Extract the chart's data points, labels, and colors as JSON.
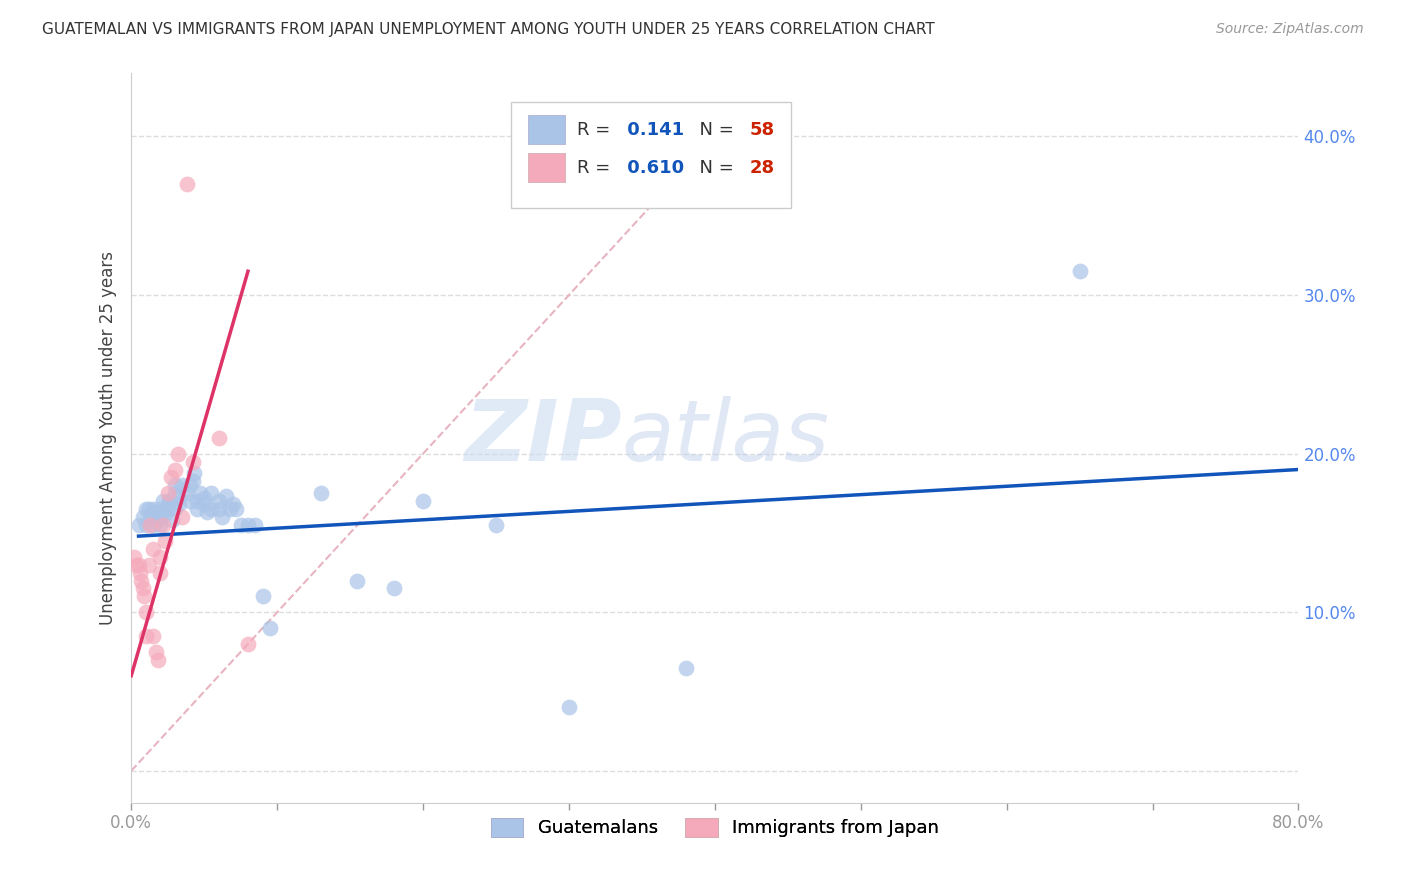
{
  "title": "GUATEMALAN VS IMMIGRANTS FROM JAPAN UNEMPLOYMENT AMONG YOUTH UNDER 25 YEARS CORRELATION CHART",
  "source": "Source: ZipAtlas.com",
  "ylabel": "Unemployment Among Youth under 25 years",
  "xlim": [
    0.0,
    0.8
  ],
  "ylim": [
    -0.02,
    0.44
  ],
  "xticks": [
    0.0,
    0.1,
    0.2,
    0.3,
    0.4,
    0.5,
    0.6,
    0.7,
    0.8
  ],
  "xticklabels": [
    "0.0%",
    "",
    "",
    "",
    "",
    "",
    "",
    "",
    "80.0%"
  ],
  "yticks": [
    0.0,
    0.1,
    0.2,
    0.3,
    0.4
  ],
  "yticklabels": [
    "",
    "10.0%",
    "20.0%",
    "30.0%",
    "40.0%"
  ],
  "guatemalans_color": "#aac4e8",
  "japan_color": "#f5aabb",
  "guatemalans_R": 0.141,
  "guatemalans_N": 58,
  "japan_R": 0.61,
  "japan_N": 28,
  "trend_blue_color": "#1155bb",
  "trend_pink_color": "#dd3366",
  "diag_color": "#e8b4c0",
  "diag_linestyle": "--",
  "watermark_zip": "ZIP",
  "watermark_atlas": "atlas",
  "legend_R_color": "#1155bb",
  "legend_N_color": "#cc2200",
  "guatemalans_x": [
    0.005,
    0.008,
    0.01,
    0.01,
    0.012,
    0.013,
    0.015,
    0.015,
    0.016,
    0.018,
    0.02,
    0.02,
    0.02,
    0.022,
    0.023,
    0.025,
    0.025,
    0.026,
    0.028,
    0.03,
    0.03,
    0.03,
    0.032,
    0.033,
    0.035,
    0.038,
    0.04,
    0.04,
    0.042,
    0.043,
    0.045,
    0.045,
    0.047,
    0.05,
    0.05,
    0.052,
    0.055,
    0.055,
    0.06,
    0.06,
    0.062,
    0.065,
    0.068,
    0.07,
    0.072,
    0.075,
    0.08,
    0.085,
    0.09,
    0.095,
    0.13,
    0.155,
    0.18,
    0.2,
    0.25,
    0.3,
    0.38,
    0.65
  ],
  "guatemalans_y": [
    0.155,
    0.16,
    0.165,
    0.155,
    0.165,
    0.16,
    0.165,
    0.155,
    0.163,
    0.158,
    0.155,
    0.165,
    0.16,
    0.17,
    0.162,
    0.165,
    0.168,
    0.17,
    0.158,
    0.165,
    0.175,
    0.18,
    0.172,
    0.168,
    0.18,
    0.175,
    0.18,
    0.17,
    0.183,
    0.188,
    0.17,
    0.165,
    0.175,
    0.168,
    0.172,
    0.163,
    0.165,
    0.175,
    0.165,
    0.17,
    0.16,
    0.173,
    0.165,
    0.168,
    0.165,
    0.155,
    0.155,
    0.155,
    0.11,
    0.09,
    0.175,
    0.12,
    0.115,
    0.17,
    0.155,
    0.04,
    0.065,
    0.315
  ],
  "japan_x": [
    0.002,
    0.003,
    0.005,
    0.006,
    0.007,
    0.008,
    0.009,
    0.01,
    0.01,
    0.012,
    0.013,
    0.015,
    0.015,
    0.017,
    0.018,
    0.02,
    0.02,
    0.022,
    0.023,
    0.025,
    0.027,
    0.03,
    0.032,
    0.035,
    0.038,
    0.042,
    0.06,
    0.08
  ],
  "japan_y": [
    0.135,
    0.13,
    0.13,
    0.125,
    0.12,
    0.115,
    0.11,
    0.085,
    0.1,
    0.13,
    0.155,
    0.14,
    0.085,
    0.075,
    0.07,
    0.125,
    0.135,
    0.155,
    0.145,
    0.175,
    0.185,
    0.19,
    0.2,
    0.16,
    0.37,
    0.195,
    0.21,
    0.08
  ],
  "blue_line_x0": 0.005,
  "blue_line_x1": 0.8,
  "blue_line_y0": 0.148,
  "blue_line_y1": 0.19,
  "pink_line_x0": 0.0,
  "pink_line_x1": 0.08,
  "pink_line_y0": 0.06,
  "pink_line_y1": 0.315
}
